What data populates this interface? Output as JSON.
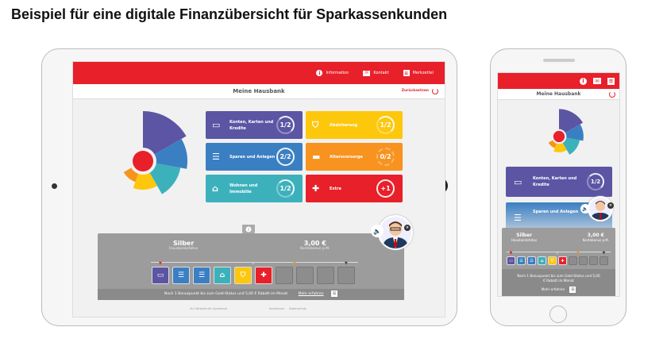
{
  "title": "Beispiel für eine digitale Finanzübersicht für Sparkassenkunden",
  "nav": [
    {
      "label": "Information",
      "icon": "info-icon"
    },
    {
      "label": "Kontakt",
      "icon": "mail-icon"
    },
    {
      "label": "Merkzettel",
      "icon": "list-icon"
    }
  ],
  "header": {
    "title": "Meine Hausbank",
    "reset": "Zurücksetzen"
  },
  "tiles": [
    {
      "label": "Konten, Karten und Kredite",
      "score": "1/2",
      "color": "#5b55a4",
      "icon": "card-icon"
    },
    {
      "label": "Absicherung",
      "score": "1/2",
      "color": "#fdc70c",
      "icon": "shield-icon"
    },
    {
      "label": "Sparen und Anlegen",
      "score": "2/2",
      "color": "#3b7fc3",
      "icon": "savings-icon"
    },
    {
      "label": "Altersvorsorge",
      "score": "0/2",
      "color": "#f7931e",
      "icon": "sofa-icon"
    },
    {
      "label": "Wohnen und Immobilie",
      "score": "1/2",
      "color": "#3cb1bc",
      "icon": "house-icon"
    },
    {
      "label": "Extra",
      "score": "+1",
      "color": "#e8202a",
      "icon": "plus-icon"
    }
  ],
  "bonus": {
    "status": "Silber",
    "status_label": "Hausbankstatus",
    "amount": "3,00 €",
    "amount_label": "Kontobonus p.M.",
    "message": "Noch 1 Bonuspunkt bis zum Gold-Status und 5,00 € Rabatt im Monat",
    "more": "Mehr erfahren",
    "phone_message": "Noch 1 Bonuspunkt bis zum Gold-Status und 5,00 € Rabatt im Monat"
  },
  "slots": [
    "#5b55a4",
    "#3b7fc3",
    "#3b7fc3",
    "#3cb1bc",
    "#fdc70c",
    "#e8202a",
    "",
    "",
    "",
    ""
  ],
  "footer": {
    "website": "Zur Website der Sparkasse",
    "imprint": "Impressum",
    "privacy": "Datenschutz"
  }
}
